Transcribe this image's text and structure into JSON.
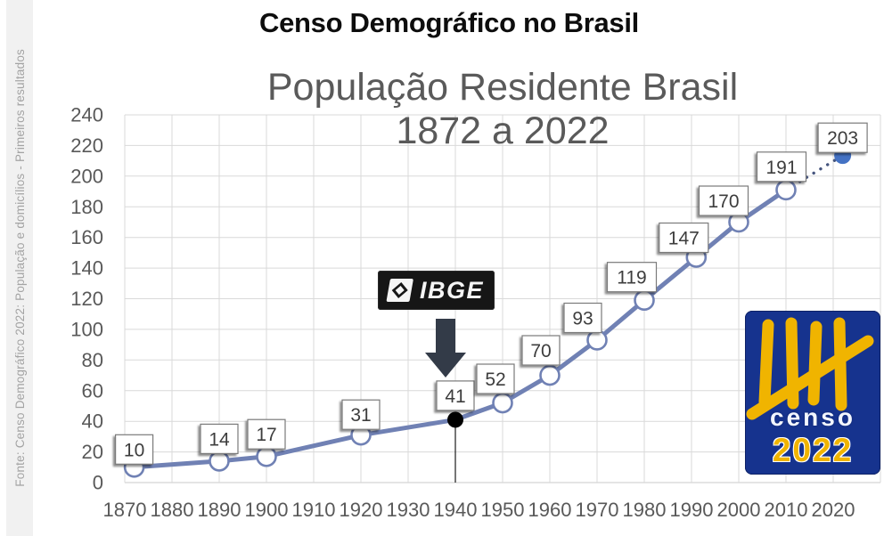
{
  "page_title": "Censo Demográfico no Brasil",
  "source_note": "Fonte: Censo Demográfico 2022: População e domicílios - Primeiros resultados",
  "chart_data": {
    "type": "line",
    "title_line1": "População Residente Brasil",
    "title_line2": "1872 a 2022",
    "xlabel": "",
    "ylabel": "",
    "x": [
      1872,
      1890,
      1900,
      1920,
      1940,
      1950,
      1960,
      1970,
      1980,
      1991,
      2000,
      2010,
      2022
    ],
    "values": [
      10,
      14,
      17,
      31,
      41,
      52,
      70,
      93,
      119,
      147,
      170,
      191,
      203
    ],
    "point_labels": [
      "10",
      "14",
      "17",
      "31",
      "41",
      "52",
      "70",
      "93",
      "119",
      "147",
      "170",
      "191",
      "203"
    ],
    "xticks": [
      1870,
      1880,
      1890,
      1900,
      1910,
      1920,
      1930,
      1940,
      1950,
      1960,
      1970,
      1980,
      1990,
      2000,
      2010,
      2020
    ],
    "yticks": [
      0,
      20,
      40,
      60,
      80,
      100,
      120,
      140,
      160,
      180,
      200,
      220,
      240
    ],
    "xlim": [
      1870,
      2030
    ],
    "ylim": [
      0,
      240
    ],
    "grid": true,
    "legend": "none",
    "notes": {
      "highlight_point": {
        "year": 1940,
        "value": 41,
        "style": "solid black marker with thin drop line to axis, IBGE logo and arrow pointing at it"
      },
      "projected_point": {
        "year": 2022,
        "value": 203,
        "style": "solid blue marker connected from 2010 by dotted line"
      }
    },
    "colors": {
      "line": "#7081b4",
      "marker_fill": "#ffffff",
      "marker_stroke": "#7081b4",
      "highlight_marker": "#000000",
      "projected_marker": "#4472c4",
      "dotted_connector": "#46557e",
      "grid": "#d9d9d9",
      "axis_text": "#595959",
      "label_text": "#3d3d3d",
      "label_box_border": "#7a7a7a",
      "drop_line": "#1a1a1a"
    }
  },
  "ibge_logo": {
    "label": "IBGE"
  },
  "censo_logo": {
    "line1": "censo",
    "line2": "2022",
    "blue": "#16338e",
    "yellow": "#f0b400"
  }
}
